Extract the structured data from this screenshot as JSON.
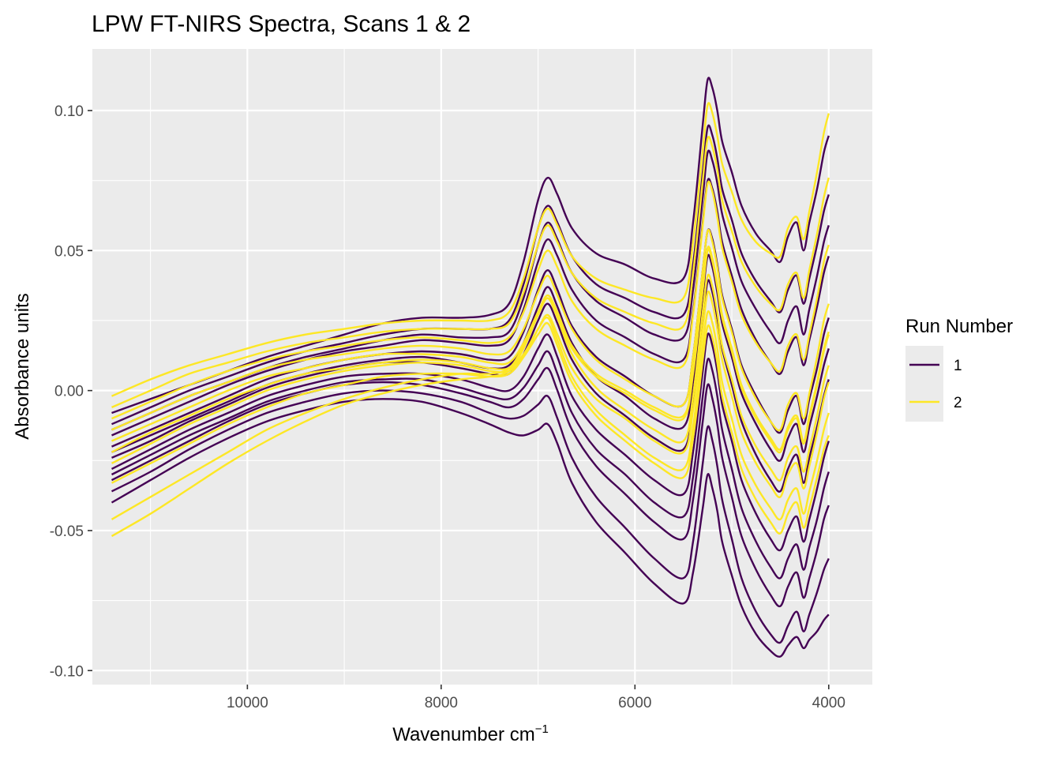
{
  "chart_data": {
    "type": "line",
    "title": "LPW FT-NIRS Spectra, Scans 1 & 2",
    "xlabel": "Wavenumber cm",
    "xlabel_superscript": "−1",
    "ylabel": "Absorbance units",
    "x_reversed": true,
    "xlim": [
      11600,
      3550
    ],
    "ylim": [
      -0.105,
      0.122
    ],
    "x_ticks": [
      10000,
      8000,
      6000,
      4000
    ],
    "x_tick_labels": [
      "10000",
      "8000",
      "6000",
      "4000"
    ],
    "y_ticks": [
      0.1,
      0.05,
      0.0,
      -0.05,
      -0.1
    ],
    "y_tick_labels": [
      "0.10",
      "0.05",
      "0.00",
      "-0.05",
      "-0.10"
    ],
    "grid": true,
    "legend": {
      "title": "Run Number",
      "placement": "right",
      "entries": [
        {
          "label": "1",
          "color": "#440154"
        },
        {
          "label": "2",
          "color": "#FDE725"
        }
      ]
    },
    "colors": {
      "run1": "#440154",
      "run2": "#FDE725",
      "panel": "#EBEBEB",
      "grid": "#FFFFFF"
    },
    "x": [
      11400,
      11000,
      10600,
      10200,
      9800,
      9400,
      9000,
      8600,
      8200,
      7800,
      7500,
      7300,
      7150,
      7000,
      6900,
      6800,
      6650,
      6400,
      6100,
      5800,
      5500,
      5400,
      5300,
      5250,
      5200,
      5150,
      5100,
      5000,
      4900,
      4750,
      4600,
      4500,
      4420,
      4330,
      4260,
      4200,
      4120,
      4050,
      4000
    ],
    "profile_notes": "Each spectrum shares the band shape; individual spectra differ by baseline offset and slope.",
    "series": [
      {
        "name": "1",
        "y": [
          -0.008,
          -0.003,
          0.002,
          0.007,
          0.012,
          0.016,
          0.02,
          0.024,
          0.026,
          0.026,
          0.027,
          0.031,
          0.046,
          0.068,
          0.076,
          0.07,
          0.058,
          0.049,
          0.045,
          0.04,
          0.04,
          0.06,
          0.095,
          0.111,
          0.108,
          0.1,
          0.089,
          0.078,
          0.066,
          0.056,
          0.05,
          0.046,
          0.055,
          0.06,
          0.05,
          0.06,
          0.072,
          0.085,
          0.091
        ]
      },
      {
        "name": "1",
        "y": [
          -0.012,
          -0.006,
          0.0,
          0.005,
          0.01,
          0.014,
          0.017,
          0.02,
          0.022,
          0.022,
          0.022,
          0.025,
          0.038,
          0.058,
          0.066,
          0.06,
          0.048,
          0.038,
          0.033,
          0.028,
          0.027,
          0.045,
          0.078,
          0.094,
          0.091,
          0.083,
          0.072,
          0.061,
          0.049,
          0.039,
          0.032,
          0.028,
          0.036,
          0.041,
          0.031,
          0.04,
          0.052,
          0.064,
          0.07
        ]
      },
      {
        "name": "1",
        "y": [
          -0.016,
          -0.01,
          -0.004,
          0.002,
          0.007,
          0.011,
          0.014,
          0.016,
          0.018,
          0.017,
          0.016,
          0.018,
          0.029,
          0.046,
          0.054,
          0.048,
          0.036,
          0.025,
          0.019,
          0.013,
          0.011,
          0.028,
          0.06,
          0.075,
          0.072,
          0.064,
          0.053,
          0.041,
          0.029,
          0.018,
          0.01,
          0.006,
          0.014,
          0.019,
          0.009,
          0.018,
          0.03,
          0.042,
          0.048
        ]
      },
      {
        "name": "1",
        "y": [
          -0.02,
          -0.014,
          -0.008,
          -0.002,
          0.004,
          0.008,
          0.011,
          0.013,
          0.014,
          0.013,
          0.011,
          0.012,
          0.021,
          0.036,
          0.043,
          0.036,
          0.023,
          0.012,
          0.005,
          -0.002,
          -0.005,
          0.012,
          0.043,
          0.057,
          0.054,
          0.045,
          0.034,
          0.022,
          0.009,
          -0.002,
          -0.011,
          -0.015,
          -0.007,
          -0.002,
          -0.012,
          -0.003,
          0.008,
          0.02,
          0.026
        ]
      },
      {
        "name": "1",
        "y": [
          -0.024,
          -0.018,
          -0.011,
          -0.005,
          0.001,
          0.005,
          0.008,
          0.01,
          0.01,
          0.008,
          0.006,
          0.006,
          0.013,
          0.025,
          0.031,
          0.024,
          0.011,
          -0.001,
          -0.009,
          -0.017,
          -0.021,
          -0.005,
          0.025,
          0.039,
          0.035,
          0.026,
          0.015,
          0.002,
          -0.011,
          -0.023,
          -0.032,
          -0.036,
          -0.028,
          -0.023,
          -0.033,
          -0.024,
          -0.013,
          -0.002,
          0.004
        ]
      },
      {
        "name": "1",
        "y": [
          -0.028,
          -0.021,
          -0.014,
          -0.008,
          -0.002,
          0.002,
          0.005,
          0.006,
          0.006,
          0.004,
          0.001,
          0.0,
          0.005,
          0.015,
          0.02,
          0.012,
          -0.002,
          -0.014,
          -0.023,
          -0.032,
          -0.037,
          -0.022,
          0.007,
          0.02,
          0.016,
          0.007,
          -0.005,
          -0.018,
          -0.032,
          -0.044,
          -0.053,
          -0.057,
          -0.05,
          -0.045,
          -0.054,
          -0.046,
          -0.035,
          -0.024,
          -0.018
        ]
      },
      {
        "name": "1",
        "y": [
          -0.032,
          -0.025,
          -0.018,
          -0.011,
          -0.005,
          -0.001,
          0.002,
          0.003,
          0.002,
          -0.001,
          -0.004,
          -0.006,
          -0.003,
          0.004,
          0.008,
          0.0,
          -0.014,
          -0.027,
          -0.037,
          -0.047,
          -0.053,
          -0.039,
          -0.011,
          0.002,
          -0.003,
          -0.012,
          -0.024,
          -0.038,
          -0.052,
          -0.064,
          -0.073,
          -0.077,
          -0.07,
          -0.065,
          -0.074,
          -0.067,
          -0.057,
          -0.046,
          -0.041
        ]
      },
      {
        "name": "1",
        "y": [
          -0.036,
          -0.029,
          -0.021,
          -0.014,
          -0.008,
          -0.004,
          -0.001,
          0.0,
          -0.001,
          -0.004,
          -0.008,
          -0.01,
          -0.009,
          -0.005,
          -0.002,
          -0.01,
          -0.024,
          -0.038,
          -0.049,
          -0.06,
          -0.067,
          -0.054,
          -0.026,
          -0.013,
          -0.018,
          -0.027,
          -0.039,
          -0.053,
          -0.067,
          -0.079,
          -0.087,
          -0.09,
          -0.084,
          -0.079,
          -0.086,
          -0.08,
          -0.072,
          -0.064,
          -0.06
        ]
      },
      {
        "name": "1",
        "y": [
          -0.04,
          -0.032,
          -0.024,
          -0.017,
          -0.011,
          -0.007,
          -0.004,
          -0.003,
          -0.004,
          -0.008,
          -0.012,
          -0.015,
          -0.016,
          -0.014,
          -0.012,
          -0.019,
          -0.033,
          -0.047,
          -0.058,
          -0.069,
          -0.076,
          -0.065,
          -0.042,
          -0.03,
          -0.035,
          -0.043,
          -0.054,
          -0.066,
          -0.077,
          -0.087,
          -0.093,
          -0.095,
          -0.091,
          -0.088,
          -0.092,
          -0.089,
          -0.086,
          -0.082,
          -0.08
        ]
      },
      {
        "name": "1",
        "y": [
          -0.014,
          -0.008,
          -0.002,
          0.003,
          0.008,
          0.012,
          0.015,
          0.018,
          0.02,
          0.019,
          0.019,
          0.021,
          0.033,
          0.052,
          0.06,
          0.054,
          0.042,
          0.032,
          0.026,
          0.02,
          0.019,
          0.036,
          0.069,
          0.085,
          0.082,
          0.074,
          0.063,
          0.051,
          0.039,
          0.029,
          0.021,
          0.017,
          0.025,
          0.03,
          0.02,
          0.029,
          0.041,
          0.053,
          0.059
        ]
      },
      {
        "name": "1",
        "y": [
          -0.022,
          -0.016,
          -0.01,
          -0.004,
          0.002,
          0.006,
          0.009,
          0.011,
          0.012,
          0.01,
          0.008,
          0.009,
          0.017,
          0.03,
          0.037,
          0.03,
          0.017,
          0.005,
          -0.002,
          -0.01,
          -0.013,
          0.003,
          0.034,
          0.048,
          0.044,
          0.035,
          0.024,
          0.012,
          -0.001,
          -0.012,
          -0.021,
          -0.025,
          -0.017,
          -0.012,
          -0.022,
          -0.013,
          -0.002,
          0.009,
          0.015
        ]
      },
      {
        "name": "1",
        "y": [
          -0.03,
          -0.023,
          -0.016,
          -0.01,
          -0.004,
          0.0,
          0.003,
          0.004,
          0.004,
          0.001,
          -0.002,
          -0.003,
          0.001,
          0.009,
          0.014,
          0.006,
          -0.008,
          -0.021,
          -0.03,
          -0.04,
          -0.045,
          -0.031,
          -0.002,
          0.011,
          0.007,
          -0.002,
          -0.014,
          -0.028,
          -0.042,
          -0.054,
          -0.063,
          -0.067,
          -0.06,
          -0.055,
          -0.064,
          -0.056,
          -0.046,
          -0.035,
          -0.029
        ]
      },
      {
        "name": "2",
        "y": [
          -0.002,
          0.004,
          0.009,
          0.013,
          0.017,
          0.02,
          0.022,
          0.024,
          0.025,
          0.025,
          0.025,
          0.028,
          0.04,
          0.058,
          0.065,
          0.059,
          0.048,
          0.04,
          0.036,
          0.033,
          0.033,
          0.053,
          0.086,
          0.102,
          0.099,
          0.091,
          0.081,
          0.071,
          0.061,
          0.053,
          0.049,
          0.048,
          0.058,
          0.062,
          0.054,
          0.064,
          0.078,
          0.092,
          0.099
        ]
      },
      {
        "name": "2",
        "y": [
          -0.006,
          0.0,
          0.006,
          0.01,
          0.014,
          0.017,
          0.019,
          0.021,
          0.022,
          0.022,
          0.022,
          0.024,
          0.035,
          0.052,
          0.059,
          0.053,
          0.042,
          0.033,
          0.028,
          0.024,
          0.023,
          0.042,
          0.075,
          0.09,
          0.087,
          0.079,
          0.068,
          0.057,
          0.046,
          0.037,
          0.031,
          0.029,
          0.038,
          0.042,
          0.033,
          0.043,
          0.056,
          0.069,
          0.076
        ]
      },
      {
        "name": "2",
        "y": [
          -0.01,
          -0.004,
          0.002,
          0.007,
          0.011,
          0.014,
          0.016,
          0.018,
          0.019,
          0.018,
          0.017,
          0.019,
          0.028,
          0.043,
          0.05,
          0.044,
          0.032,
          0.022,
          0.016,
          0.011,
          0.009,
          0.027,
          0.059,
          0.074,
          0.071,
          0.062,
          0.051,
          0.039,
          0.027,
          0.017,
          0.01,
          0.007,
          0.016,
          0.02,
          0.011,
          0.02,
          0.033,
          0.046,
          0.052
        ]
      },
      {
        "name": "2",
        "y": [
          -0.014,
          -0.008,
          -0.002,
          0.003,
          0.008,
          0.011,
          0.013,
          0.015,
          0.016,
          0.015,
          0.013,
          0.014,
          0.022,
          0.035,
          0.041,
          0.034,
          0.022,
          0.011,
          0.004,
          -0.002,
          -0.005,
          0.012,
          0.043,
          0.057,
          0.053,
          0.044,
          0.033,
          0.021,
          0.008,
          -0.003,
          -0.011,
          -0.014,
          -0.005,
          -0.001,
          -0.01,
          -0.001,
          0.012,
          0.025,
          0.031
        ]
      },
      {
        "name": "2",
        "y": [
          -0.018,
          -0.012,
          -0.006,
          0.0,
          0.005,
          0.008,
          0.011,
          0.013,
          0.013,
          0.012,
          0.01,
          0.01,
          0.017,
          0.028,
          0.033,
          0.026,
          0.013,
          0.001,
          -0.007,
          -0.014,
          -0.018,
          -0.002,
          0.028,
          0.041,
          0.037,
          0.028,
          0.016,
          0.004,
          -0.009,
          -0.02,
          -0.028,
          -0.032,
          -0.024,
          -0.02,
          -0.029,
          -0.021,
          -0.009,
          0.003,
          0.009
        ]
      },
      {
        "name": "2",
        "y": [
          -0.022,
          -0.015,
          -0.009,
          -0.003,
          0.002,
          0.006,
          0.008,
          0.01,
          0.011,
          0.01,
          0.008,
          0.008,
          0.013,
          0.022,
          0.026,
          0.018,
          0.005,
          -0.007,
          -0.016,
          -0.024,
          -0.028,
          -0.013,
          0.016,
          0.028,
          0.024,
          0.015,
          0.003,
          -0.01,
          -0.023,
          -0.034,
          -0.042,
          -0.046,
          -0.039,
          -0.035,
          -0.044,
          -0.036,
          -0.025,
          -0.014,
          -0.008
        ]
      },
      {
        "name": "2",
        "y": [
          -0.026,
          -0.019,
          -0.012,
          -0.006,
          0.0,
          0.004,
          0.007,
          0.009,
          0.01,
          0.009,
          0.007,
          0.007,
          0.012,
          0.02,
          0.024,
          0.016,
          0.003,
          -0.009,
          -0.018,
          -0.026,
          -0.031,
          -0.017,
          0.011,
          0.023,
          0.019,
          0.01,
          -0.002,
          -0.015,
          -0.028,
          -0.039,
          -0.047,
          -0.051,
          -0.044,
          -0.04,
          -0.049,
          -0.042,
          -0.031,
          -0.021,
          -0.016
        ]
      },
      {
        "name": "2",
        "y": [
          -0.033,
          -0.026,
          -0.019,
          -0.012,
          -0.006,
          -0.001,
          0.002,
          0.005,
          0.006,
          0.006,
          0.005,
          0.006,
          0.012,
          0.022,
          0.027,
          0.02,
          0.008,
          -0.003,
          -0.01,
          -0.018,
          -0.022,
          -0.007,
          0.022,
          0.035,
          0.031,
          0.022,
          0.011,
          -0.002,
          -0.015,
          -0.026,
          -0.034,
          -0.038,
          -0.03,
          -0.026,
          -0.035,
          -0.027,
          -0.015,
          -0.003,
          0.003
        ]
      },
      {
        "name": "2",
        "y": [
          -0.046,
          -0.038,
          -0.03,
          -0.022,
          -0.014,
          -0.008,
          -0.003,
          0.001,
          0.004,
          0.006,
          0.006,
          0.008,
          0.016,
          0.028,
          0.034,
          0.028,
          0.016,
          0.006,
          0.0,
          -0.006,
          -0.009,
          0.007,
          0.037,
          0.051,
          0.047,
          0.038,
          0.027,
          0.015,
          0.002,
          -0.009,
          -0.017,
          -0.021,
          -0.013,
          -0.009,
          -0.018,
          -0.009,
          0.003,
          0.015,
          0.021
        ]
      },
      {
        "name": "2",
        "y": [
          -0.052,
          -0.044,
          -0.035,
          -0.026,
          -0.018,
          -0.011,
          -0.005,
          -0.001,
          0.002,
          0.004,
          0.005,
          0.007,
          0.015,
          0.027,
          0.033,
          0.027,
          0.015,
          0.005,
          -0.001,
          -0.007,
          -0.01,
          0.006,
          0.036,
          0.05,
          0.046,
          0.037,
          0.026,
          0.014,
          0.001,
          -0.01,
          -0.018,
          -0.022,
          -0.014,
          -0.01,
          -0.019,
          -0.01,
          0.002,
          0.014,
          0.02
        ]
      }
    ]
  }
}
